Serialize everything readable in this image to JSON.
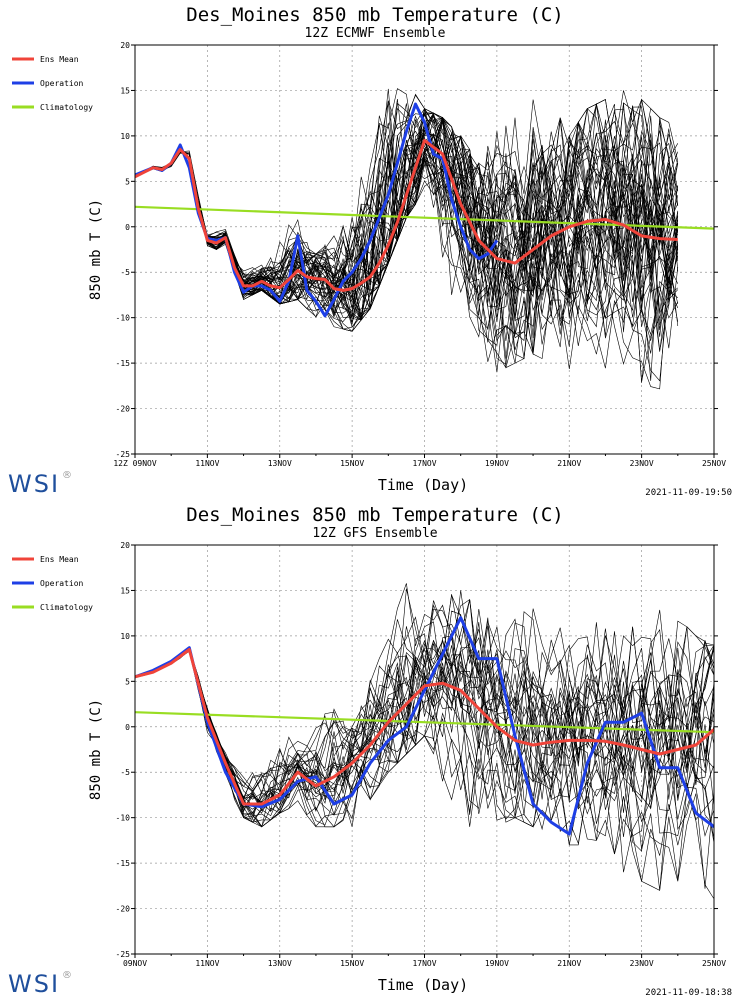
{
  "charts": [
    {
      "title": "Des_Moines 850 mb Temperature (C)",
      "subtitle": "12Z ECMWF Ensemble",
      "stamp": "2021-11-09-19:50",
      "logo": "WSI"
    },
    {
      "title": "Des_Moines 850 mb Temperature (C)",
      "subtitle": "12Z GFS Ensemble",
      "stamp": "2021-11-09-18:38",
      "logo": "WSI"
    }
  ],
  "chart_data": [
    {
      "type": "line",
      "title": "Des_Moines 850 mb Temperature (C)",
      "subtitle": "12Z ECMWF Ensemble",
      "xlabel": "Time (Day)",
      "ylabel": "850 mb T (C)",
      "xlim": [
        0,
        16
      ],
      "ylim": [
        -25,
        20
      ],
      "yticks": [
        -25,
        -20,
        -15,
        -10,
        -5,
        0,
        5,
        10,
        15,
        20
      ],
      "xtick_positions": [
        0,
        2,
        4,
        6,
        8,
        10,
        12,
        14,
        16
      ],
      "xtick_labels": [
        "12Z 09NOV",
        "11NOV",
        "13NOV",
        "15NOV",
        "17NOV",
        "19NOV",
        "21NOV",
        "23NOV",
        "25NOV"
      ],
      "x_unit": "days since 12Z 09NOV",
      "grid": true,
      "legend": [
        "Ens Mean",
        "Operation",
        "Climatology"
      ],
      "colors": {
        "ensemble": "#000000",
        "Ens Mean": "#f0443a",
        "Operation": "#1e3fe6",
        "Climatology": "#99dd22"
      },
      "ensemble_members": 51,
      "ensemble_spread": {
        "x": [
          0,
          0.5,
          1,
          1.5,
          2,
          2.5,
          3,
          3.5,
          4,
          4.5,
          5,
          5.5,
          6,
          6.5,
          7,
          7.5,
          8,
          8.5,
          9,
          9.5,
          10,
          10.5,
          11,
          11.5,
          12,
          12.5,
          13,
          13.5,
          14,
          14.5,
          15
        ],
        "min": [
          5.5,
          6,
          6,
          8,
          -3,
          -2,
          -8,
          -7,
          -8.5,
          -8,
          -10,
          -11,
          -11.5,
          -9,
          -4,
          1,
          4,
          -5,
          -10,
          -15,
          -16,
          -15,
          -14,
          -15,
          -16,
          -18,
          -16,
          -17,
          -18,
          -22,
          -14
        ],
        "max": [
          6,
          7,
          7,
          9.5,
          0,
          0.5,
          -4,
          -3,
          -1,
          3,
          -3,
          -1,
          2,
          9,
          19,
          17,
          13,
          12,
          10,
          7,
          11,
          12,
          14,
          14,
          10,
          13,
          14,
          15,
          14,
          12,
          11
        ]
      },
      "series": [
        {
          "name": "Ens Mean",
          "x": [
            0,
            0.5,
            0.75,
            1,
            1.25,
            1.5,
            1.75,
            2,
            2.25,
            2.5,
            2.75,
            3,
            3.25,
            3.5,
            3.75,
            4,
            4.25,
            4.5,
            4.75,
            5,
            5.25,
            5.5,
            5.75,
            6,
            6.25,
            6.5,
            6.75,
            7,
            7.25,
            7.5,
            7.75,
            8,
            8.5,
            9,
            9.5,
            10,
            10.5,
            11,
            11.5,
            12,
            12.5,
            13,
            13.5,
            14,
            14.5,
            15
          ],
          "y": [
            5.5,
            6.5,
            6.3,
            7,
            8.5,
            7.5,
            2,
            -1.5,
            -1.8,
            -1.2,
            -4.5,
            -6.5,
            -6.5,
            -6,
            -6.5,
            -6.7,
            -5.8,
            -4.8,
            -5.5,
            -5.7,
            -5.8,
            -6.8,
            -7,
            -6.8,
            -6.2,
            -5.5,
            -4,
            -2,
            0.5,
            3.5,
            6.5,
            9.5,
            8,
            2.5,
            -1.5,
            -3.5,
            -4,
            -2.5,
            -1,
            0,
            0.6,
            0.8,
            0.2,
            -1,
            -1.3,
            -1.4
          ]
        },
        {
          "name": "Operation",
          "x": [
            0,
            0.5,
            0.75,
            1,
            1.25,
            1.5,
            1.75,
            2,
            2.25,
            2.5,
            2.75,
            3,
            3.25,
            3.5,
            3.75,
            4,
            4.25,
            4.5,
            4.75,
            5,
            5.25,
            5.5,
            5.75,
            6,
            6.25,
            6.5,
            6.75,
            7,
            7.25,
            7.5,
            7.75,
            8,
            8.25,
            8.5,
            8.75,
            9,
            9.25,
            9.5,
            9.75,
            10
          ],
          "y": [
            5.7,
            6.5,
            6.2,
            7,
            9,
            6.5,
            1.5,
            -1.3,
            -1.5,
            -1.2,
            -5,
            -7.2,
            -6.5,
            -6.5,
            -7,
            -8.2,
            -6,
            -1,
            -7,
            -8.2,
            -9.8,
            -8,
            -6,
            -5,
            -3.5,
            -1.5,
            1,
            3.5,
            7,
            10.5,
            13.5,
            11.5,
            8,
            7.5,
            3,
            0,
            -2.5,
            -3.5,
            -3,
            -1.5
          ]
        },
        {
          "name": "Climatology",
          "x": [
            0,
            16
          ],
          "y": [
            2.2,
            -0.2
          ]
        }
      ]
    },
    {
      "type": "line",
      "title": "Des_Moines 850 mb Temperature (C)",
      "subtitle": "12Z GFS Ensemble",
      "xlabel": "Time (Day)",
      "ylabel": "850 mb T (C)",
      "xlim": [
        0,
        16
      ],
      "ylim": [
        -25,
        20
      ],
      "yticks": [
        -25,
        -20,
        -15,
        -10,
        -5,
        0,
        5,
        10,
        15,
        20
      ],
      "xtick_positions": [
        0,
        2,
        4,
        6,
        8,
        10,
        12,
        14,
        16
      ],
      "xtick_labels": [
        "09NOV",
        "11NOV",
        "13NOV",
        "15NOV",
        "17NOV",
        "19NOV",
        "21NOV",
        "23NOV",
        "25NOV"
      ],
      "x_unit": "days since 09NOV",
      "grid": true,
      "legend": [
        "Ens Mean",
        "Operation",
        "Climatology"
      ],
      "colors": {
        "ensemble": "#000000",
        "Ens Mean": "#f0443a",
        "Operation": "#1e3fe6",
        "Climatology": "#99dd22"
      },
      "ensemble_members": 31,
      "ensemble_spread": {
        "x": [
          0,
          0.5,
          1,
          1.5,
          2,
          2.5,
          3,
          3.5,
          4,
          4.5,
          5,
          5.5,
          6,
          6.5,
          7,
          7.5,
          8,
          8.5,
          9,
          9.5,
          10,
          10.5,
          11,
          11.5,
          12,
          12.5,
          13,
          13.5,
          14,
          14.5,
          15,
          15.5,
          16
        ],
        "min": [
          5.3,
          6,
          6.5,
          8,
          -2,
          -6,
          -10,
          -11,
          -9.5,
          -8.5,
          -11,
          -11,
          -11,
          -8,
          -5,
          -3,
          -1,
          -6,
          -10,
          -12,
          -11,
          -10,
          -11,
          -12,
          -13,
          -13,
          -12,
          -16,
          -17,
          -18,
          -17,
          -18,
          -19
        ],
        "max": [
          6,
          6.5,
          7,
          9,
          2,
          -2,
          -4,
          -2,
          0,
          -1,
          0,
          3,
          0,
          7,
          10,
          16,
          14,
          15,
          15,
          13,
          11,
          13,
          13,
          10,
          12,
          12,
          11,
          10,
          12,
          13,
          12,
          10,
          9
        ]
      },
      "series": [
        {
          "name": "Ens Mean",
          "x": [
            0,
            0.5,
            1,
            1.5,
            2,
            2.5,
            3,
            3.5,
            4,
            4.5,
            5,
            5.5,
            6,
            6.5,
            7,
            7.5,
            8,
            8.5,
            9,
            9.5,
            10,
            10.5,
            11,
            11.5,
            12,
            12.5,
            13,
            13.5,
            14,
            14.5,
            15,
            15.5,
            16
          ],
          "y": [
            5.5,
            6,
            7,
            8.5,
            1,
            -4,
            -8.5,
            -8.5,
            -7.5,
            -5,
            -6.5,
            -5.5,
            -4,
            -2,
            0.5,
            2.5,
            4.5,
            4.8,
            4,
            2,
            0,
            -1.5,
            -2,
            -1.7,
            -1.5,
            -1.5,
            -1.6,
            -2,
            -2.5,
            -3,
            -2.5,
            -2,
            -0.3
          ]
        },
        {
          "name": "Operation",
          "x": [
            0,
            0.5,
            1,
            1.5,
            2,
            2.5,
            3,
            3.5,
            4,
            4.5,
            5,
            5.5,
            6,
            6.5,
            7,
            7.5,
            8,
            8.5,
            9,
            9.5,
            10,
            10.5,
            11,
            11.5,
            12,
            12.5,
            13,
            13.5,
            14,
            14.5,
            15,
            15.5,
            16
          ],
          "y": [
            5.5,
            6.2,
            7.2,
            8.7,
            0.5,
            -5,
            -8.5,
            -8.8,
            -8,
            -6,
            -5.5,
            -8.5,
            -7.5,
            -4,
            -1.5,
            0,
            4,
            8,
            12,
            7.5,
            7.5,
            -1,
            -8.5,
            -10.5,
            -11.8,
            -4,
            0.5,
            0.5,
            1.5,
            -4.5,
            -4.5,
            -9.5,
            -11
          ]
        },
        {
          "name": "Climatology",
          "x": [
            0,
            16
          ],
          "y": [
            1.6,
            -0.6
          ]
        }
      ]
    }
  ]
}
